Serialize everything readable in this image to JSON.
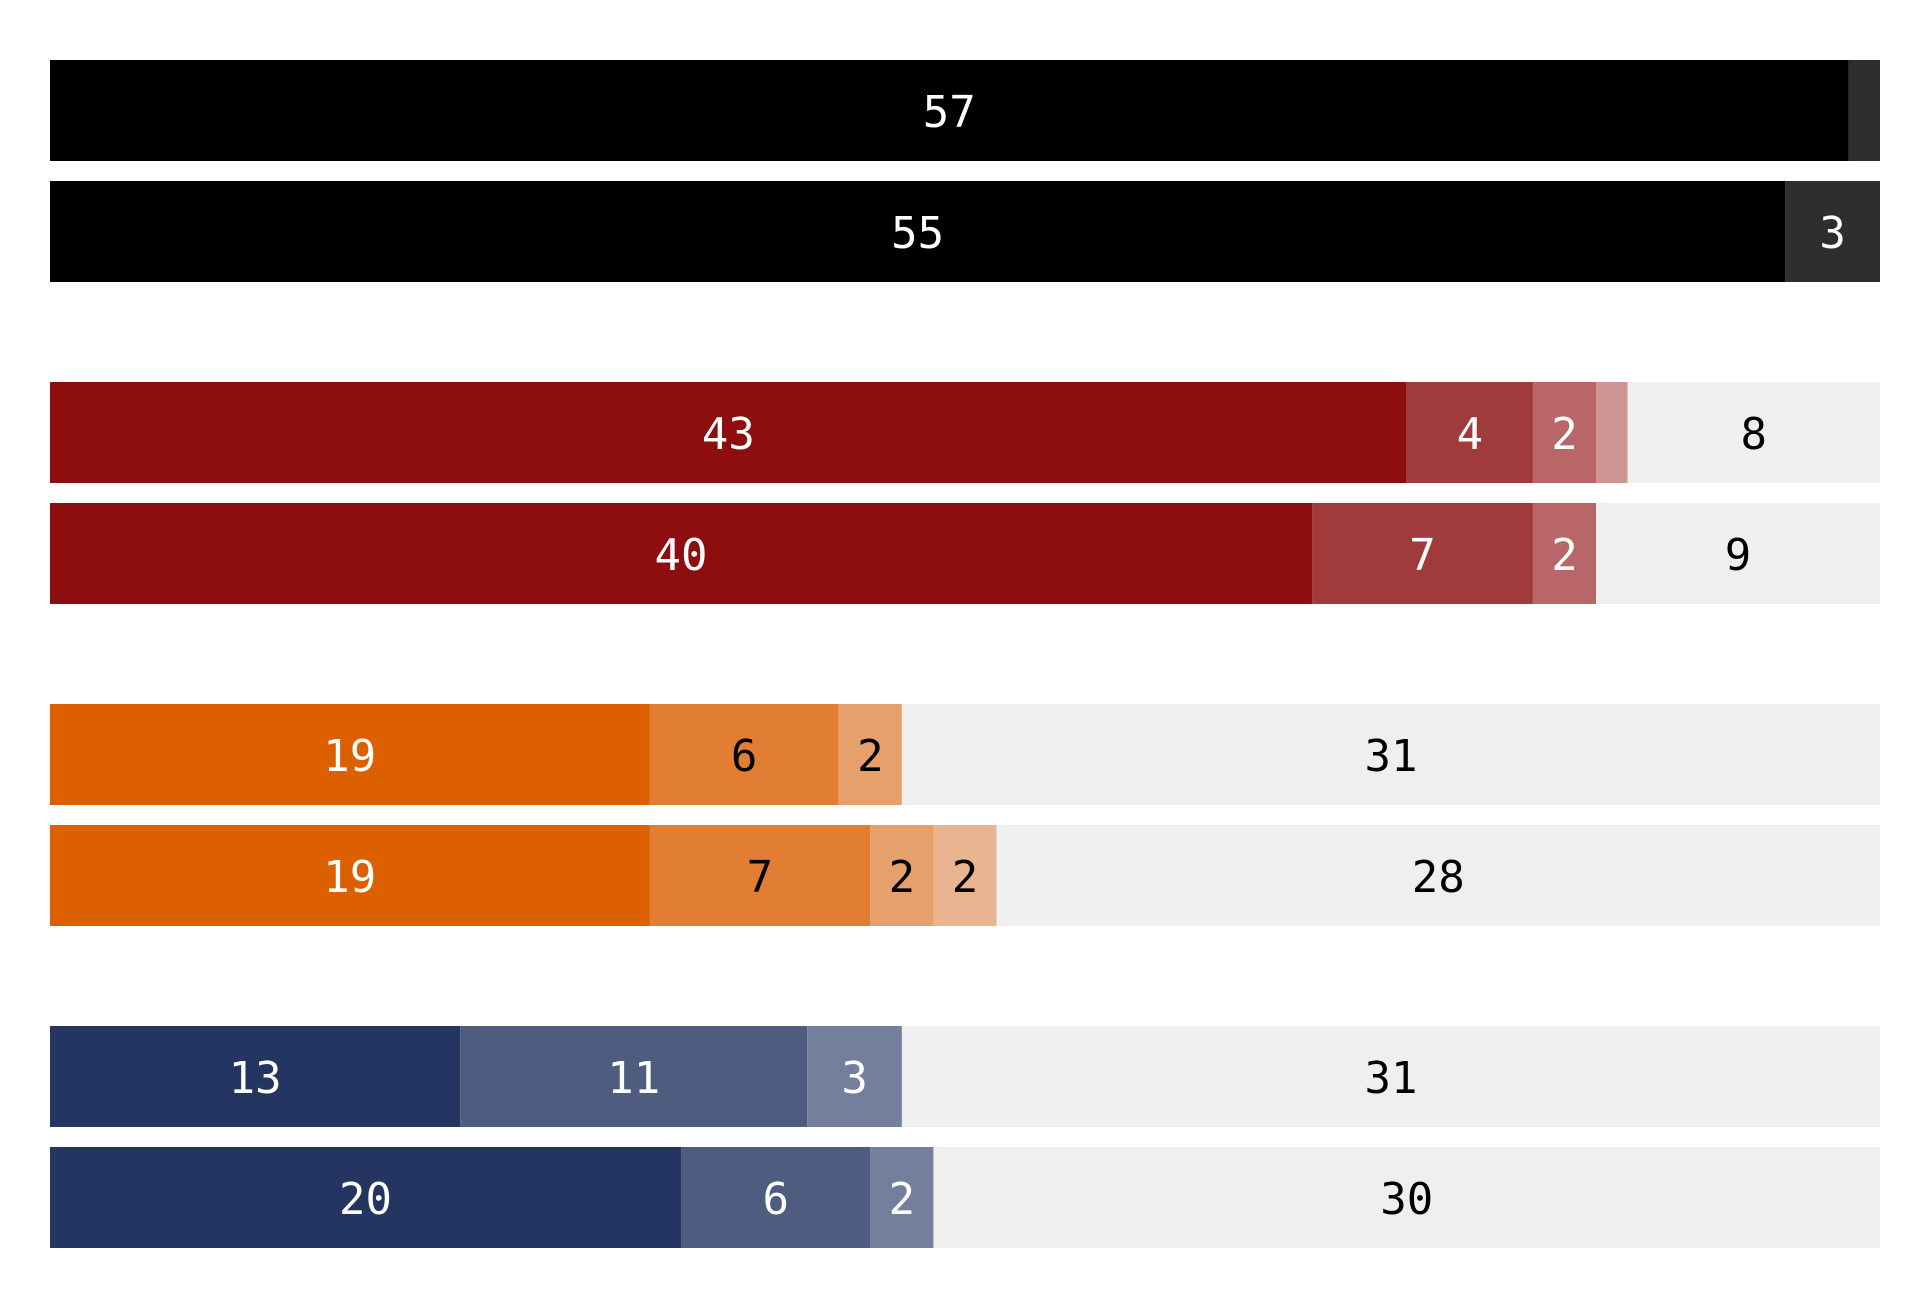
{
  "chart_data": {
    "type": "bar",
    "orientation": "horizontal",
    "stacked": true,
    "xlim": [
      0,
      58
    ],
    "grid": false,
    "legend": "none",
    "groups": [
      {
        "colors": [
          "#000000",
          "#2e2e2e",
          "#5a5a5a",
          "#8a8a8a",
          "#efefef"
        ],
        "rows": [
          {
            "values": [
              57,
              1,
              0,
              0,
              0
            ]
          },
          {
            "values": [
              55,
              3,
              0,
              0,
              0
            ]
          }
        ]
      },
      {
        "colors": [
          "#8e0e0f",
          "#a13a3b",
          "#b86667",
          "#cf9494",
          "#efefef"
        ],
        "rows": [
          {
            "values": [
              43,
              4,
              2,
              1,
              8
            ]
          },
          {
            "values": [
              40,
              7,
              2,
              0,
              9
            ]
          }
        ]
      },
      {
        "colors": [
          "#dc5f00",
          "#e17e33",
          "#e5a06c",
          "#e9b590",
          "#efefef"
        ],
        "rows": [
          {
            "values": [
              19,
              6,
              2,
              0,
              31
            ]
          },
          {
            "values": [
              19,
              7,
              2,
              2,
              28
            ]
          }
        ]
      },
      {
        "colors": [
          "#253561",
          "#4e5d7f",
          "#737f9c",
          "#9aa3ba",
          "#efefef"
        ],
        "rows": [
          {
            "values": [
              13,
              11,
              3,
              0,
              31
            ]
          },
          {
            "values": [
              20,
              6,
              2,
              0,
              30
            ]
          }
        ]
      }
    ]
  }
}
